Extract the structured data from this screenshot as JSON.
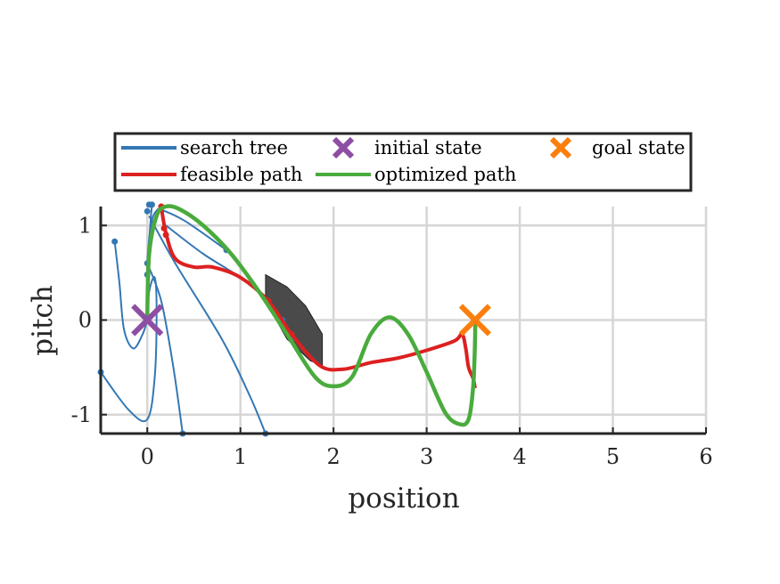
{
  "chart_data": {
    "type": "line",
    "xlabel": "position",
    "ylabel": "pitch",
    "xlim": [
      -0.5,
      6
    ],
    "ylim": [
      -1.2,
      1.2
    ],
    "x_ticks": [
      0,
      1,
      2,
      3,
      4,
      5,
      6
    ],
    "x_tick_labels": [
      "0",
      "1",
      "2",
      "3",
      "4",
      "5",
      "6"
    ],
    "y_ticks": [
      -1,
      0,
      1
    ],
    "y_tick_labels": [
      "-1",
      "0",
      "1"
    ],
    "grid": true,
    "legend": {
      "placement": "above plot",
      "entries": [
        {
          "label": "search tree",
          "color": "#3477b5",
          "kind": "line"
        },
        {
          "label": "initial state",
          "color": "#8e4ea3",
          "kind": "x-marker"
        },
        {
          "label": "goal state",
          "color": "#fb7f0e",
          "kind": "x-marker"
        },
        {
          "label": "feasible path",
          "color": "#dd2020",
          "kind": "line"
        },
        {
          "label": "optimized path",
          "color": "#4aab3d",
          "kind": "line"
        }
      ]
    },
    "search_tree": {
      "name": "search tree",
      "color": "#3477b5",
      "branches": [
        [
          [
            0,
            0
          ],
          [
            -0.05,
            -0.15
          ],
          [
            -0.15,
            -0.3
          ],
          [
            -0.25,
            -0.1
          ],
          [
            -0.3,
            0.4
          ],
          [
            -0.35,
            0.83
          ]
        ],
        [
          [
            0,
            0
          ],
          [
            0.02,
            0.3
          ],
          [
            0.08,
            0.45
          ],
          [
            0.1,
            0.1
          ],
          [
            0.08,
            -0.6
          ],
          [
            0.0,
            -1.05
          ],
          [
            -0.2,
            -0.95
          ],
          [
            -0.5,
            -0.55
          ]
        ],
        [
          [
            0,
            0
          ],
          [
            0.0,
            0.6
          ],
          [
            0.05,
            1.05
          ],
          [
            0.12,
            1.18
          ]
        ],
        [
          [
            0,
            0
          ],
          [
            0.02,
            0.8
          ],
          [
            0.05,
            1.22
          ]
        ],
        [
          [
            0.0,
            0.6
          ],
          [
            0.15,
            0.2
          ],
          [
            0.28,
            -0.5
          ],
          [
            0.38,
            -1.2
          ]
        ],
        [
          [
            0.02,
            1.1
          ],
          [
            0.3,
            0.6
          ],
          [
            0.8,
            -0.2
          ],
          [
            1.1,
            -0.8
          ],
          [
            1.27,
            -1.2
          ]
        ],
        [
          [
            0.12,
            1.18
          ],
          [
            0.4,
            1.05
          ],
          [
            0.85,
            0.74
          ]
        ],
        [
          [
            0.2,
            1.0
          ],
          [
            0.6,
            0.7
          ],
          [
            1.0,
            0.45
          ],
          [
            1.3,
            0.2
          ],
          [
            1.45,
            0.0
          ],
          [
            1.55,
            -0.2
          ]
        ]
      ],
      "nodes": [
        [
          -0.35,
          0.83
        ],
        [
          -0.5,
          -0.55
        ],
        [
          0.0,
          0.6
        ],
        [
          0.0,
          0.48
        ],
        [
          0.02,
          1.22
        ],
        [
          0.05,
          1.22
        ],
        [
          0.0,
          1.15
        ],
        [
          0.38,
          -1.2
        ],
        [
          1.27,
          -1.2
        ],
        [
          0.85,
          0.74
        ],
        [
          1.45,
          0.0
        ],
        [
          1.55,
          -0.2
        ]
      ]
    },
    "feasible_path": {
      "name": "feasible path",
      "color": "#dd2020",
      "points": [
        [
          0.15,
          1.2
        ],
        [
          0.2,
          0.92
        ],
        [
          0.3,
          0.65
        ],
        [
          0.5,
          0.56
        ],
        [
          0.7,
          0.56
        ],
        [
          1.0,
          0.45
        ],
        [
          1.3,
          0.2
        ],
        [
          1.55,
          -0.15
        ],
        [
          1.85,
          -0.48
        ],
        [
          2.1,
          -0.52
        ],
        [
          2.4,
          -0.45
        ],
        [
          2.7,
          -0.4
        ],
        [
          3.0,
          -0.32
        ],
        [
          3.3,
          -0.22
        ],
        [
          3.38,
          -0.15
        ],
        [
          3.42,
          -0.3
        ],
        [
          3.45,
          -0.5
        ],
        [
          3.5,
          -0.62
        ],
        [
          3.52,
          -0.72
        ]
      ],
      "nodes": [
        [
          0.15,
          1.2
        ],
        [
          0.18,
          0.97
        ],
        [
          0.2,
          0.9
        ],
        [
          1.3,
          0.2
        ],
        [
          1.55,
          -0.15
        ]
      ]
    },
    "optimized_path": {
      "name": "optimized path",
      "color": "#4aab3d",
      "points": [
        [
          0.0,
          0.05
        ],
        [
          0.02,
          0.7
        ],
        [
          0.1,
          1.1
        ],
        [
          0.2,
          1.2
        ],
        [
          0.35,
          1.17
        ],
        [
          0.6,
          1.0
        ],
        [
          0.9,
          0.7
        ],
        [
          1.2,
          0.3
        ],
        [
          1.5,
          -0.15
        ],
        [
          1.8,
          -0.6
        ],
        [
          2.0,
          -0.7
        ],
        [
          2.2,
          -0.6
        ],
        [
          2.4,
          -0.15
        ],
        [
          2.6,
          0.03
        ],
        [
          2.8,
          -0.15
        ],
        [
          3.0,
          -0.55
        ],
        [
          3.2,
          -0.98
        ],
        [
          3.35,
          -1.1
        ],
        [
          3.45,
          -1.05
        ],
        [
          3.5,
          -0.7
        ],
        [
          3.52,
          -0.2
        ],
        [
          3.52,
          0.0
        ]
      ]
    },
    "obstacle": {
      "color": "#4a4a4a",
      "points": [
        [
          1.27,
          0.48
        ],
        [
          1.5,
          0.35
        ],
        [
          1.7,
          0.15
        ],
        [
          1.88,
          -0.15
        ],
        [
          1.88,
          -0.48
        ],
        [
          1.75,
          -0.43
        ],
        [
          1.5,
          -0.2
        ],
        [
          1.27,
          0.2
        ]
      ]
    },
    "initial_state": {
      "name": "initial state",
      "x": 0.0,
      "y": 0.0,
      "color": "#8e4ea3"
    },
    "goal_state": {
      "name": "goal state",
      "x": 3.52,
      "y": 0.0,
      "color": "#fb7f0e"
    }
  }
}
